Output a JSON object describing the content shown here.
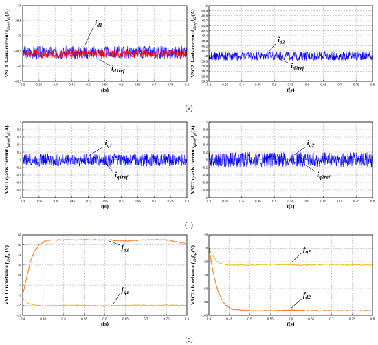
{
  "captions": [
    "(a)",
    "(b)",
    "(c)"
  ],
  "chart_data": [
    {
      "id": "a1",
      "type": "line",
      "ylabel": "VSC1 d-axis current i_d1ref,i_d1(A)",
      "ylabel_parts": {
        "main": "VSC1 d-axis current ",
        "vars": "i",
        "sub1": "d1ref",
        "sep": ",i",
        "sub2": "d1",
        "unit": "(A)"
      },
      "xlabel": "t(s)",
      "xlabel_parts": {
        "var": "t",
        "unit": "(s)"
      },
      "xlim": [
        0.3,
        0.8
      ],
      "ylim": [
        -40.5,
        -38
      ],
      "xticks": [
        0.3,
        0.35,
        0.4,
        0.45,
        0.5,
        0.55,
        0.6,
        0.65,
        0.7,
        0.75,
        0.8
      ],
      "xtick_labels": [
        "0.3",
        "0.35",
        "0.4",
        "0.45",
        "0.5",
        "0.55",
        "0.6",
        "0.65",
        "0.7",
        "0.75",
        "0.8"
      ],
      "yticks": [
        -40.5,
        -40,
        -39.5,
        -39,
        -38.5,
        -38
      ],
      "ytick_labels": [
        "-40.5",
        "-40",
        "-39.5",
        "-39",
        "-38.5",
        "-38"
      ],
      "grid": true,
      "series": [
        {
          "name": "i_d1",
          "kind": "band",
          "color": "#1a1aff",
          "center": -39.55,
          "half_width": 0.22
        },
        {
          "name": "i_d1ref",
          "kind": "band",
          "color": "#ff0000",
          "center": -39.6,
          "half_width": 0.13
        }
      ],
      "annotations": [
        {
          "main": "i",
          "sub": "d1",
          "x": 0.52,
          "y": -38.65,
          "ax": 0.49,
          "ay": -39.3
        },
        {
          "main": "i",
          "sub": "d1ref",
          "x": 0.57,
          "y": -40.15,
          "ax": 0.53,
          "ay": -39.75
        }
      ]
    },
    {
      "id": "a2",
      "type": "line",
      "ylabel": "VSC2 d-axis current i_d2ref,i_d2(A)",
      "ylabel_parts": {
        "main": "VSC2 d-axis current ",
        "vars": "i",
        "sub1": "d2ref",
        "sep": ",i",
        "sub2": "d2",
        "unit": "(A)"
      },
      "xlabel": "t(s)",
      "xlabel_parts": {
        "var": "t",
        "unit": "(s)"
      },
      "xlim": [
        0.3,
        0.8
      ],
      "ylim": [
        39.5,
        41
      ],
      "xticks": [
        0.3,
        0.35,
        0.4,
        0.45,
        0.5,
        0.55,
        0.6,
        0.65,
        0.7,
        0.75,
        0.8
      ],
      "xtick_labels": [
        "0.3",
        "0.35",
        "0.4",
        "0.45",
        "0.5",
        "0.55",
        "0.6",
        "0.65",
        "0.7",
        "0.75",
        "0.8"
      ],
      "yticks": [
        39.5,
        39.6,
        39.7,
        39.8,
        39.9,
        40,
        40.1,
        40.2,
        40.3,
        40.4,
        40.5,
        40.6,
        40.7,
        40.8,
        40.9,
        41
      ],
      "ytick_labels": [
        "39.5",
        "39.6",
        "39.7",
        "39.8",
        "39.9",
        "40",
        "40.1",
        "40.2",
        "40.3",
        "40.4",
        "40.5",
        "40.6",
        "40.7",
        "40.8",
        "40.9",
        "41"
      ],
      "grid": true,
      "series": [
        {
          "name": "i_d2",
          "kind": "band",
          "color": "#0000ee",
          "center": 40.0,
          "half_width": 0.09
        },
        {
          "name": "i_d2ref",
          "kind": "line",
          "color": "#ff0000",
          "y": 40.0
        }
      ],
      "annotations": [
        {
          "main": "i",
          "sub": "d2",
          "x": 0.51,
          "y": 40.28,
          "ax": 0.48,
          "ay": 40.07
        },
        {
          "main": "i",
          "sub": "d2ref",
          "x": 0.55,
          "y": 39.76,
          "ax": 0.51,
          "ay": 39.95
        }
      ]
    },
    {
      "id": "b1",
      "type": "line",
      "ylabel": "VSC1 q-axis current i_q1ref,i_q1(A)",
      "ylabel_parts": {
        "main": "VSC1 q-axis current ",
        "vars": "i",
        "sub1": "q1ref",
        "sep": ",i",
        "sub2": "q1",
        "unit": "(A)"
      },
      "xlabel": "t(s)",
      "xlabel_parts": {
        "var": "t",
        "unit": "(s)"
      },
      "xlim": [
        0.3,
        0.8
      ],
      "ylim": [
        -1,
        1
      ],
      "xticks": [
        0.3,
        0.35,
        0.4,
        0.45,
        0.5,
        0.55,
        0.6,
        0.65,
        0.7,
        0.75,
        0.8
      ],
      "xtick_labels": [
        "0.3",
        "0.35",
        "0.4",
        "0.45",
        "0.5",
        "0.55",
        "0.6",
        "0.65",
        "0.7",
        "0.75",
        "0.8"
      ],
      "yticks": [
        -1,
        -0.8,
        -0.6,
        -0.4,
        -0.2,
        0,
        0.2,
        0.4,
        0.6,
        0.8,
        1
      ],
      "ytick_labels": [
        "-1",
        "-0.8",
        "-0.6",
        "-0.4",
        "-0.2",
        "0",
        "0.2",
        "0.4",
        "0.6",
        "0.8",
        "1"
      ],
      "grid": true,
      "series": [
        {
          "name": "i_q1",
          "kind": "band",
          "color": "#0000ff",
          "center": 0.0,
          "half_width": 0.17
        },
        {
          "name": "i_q1ref",
          "kind": "line",
          "color": "#ff0000",
          "y": 0.0
        }
      ],
      "annotations": [
        {
          "main": "i",
          "sub": "q1",
          "x": 0.55,
          "y": 0.38,
          "ax": 0.5,
          "ay": 0.1
        },
        {
          "main": "i",
          "sub": "q1ref",
          "x": 0.58,
          "y": -0.45,
          "ax": 0.55,
          "ay": -0.08
        }
      ]
    },
    {
      "id": "b2",
      "type": "line",
      "ylabel": "VSC2 q-axis current i_q2ref,i_q2(A)",
      "ylabel_parts": {
        "main": "VSC2 q-axis current ",
        "vars": "i",
        "sub1": "q2ref",
        "sep": ",i",
        "sub2": "q2",
        "unit": "(A)"
      },
      "xlabel": "t(s)",
      "xlabel_parts": {
        "var": "t",
        "unit": "(s)"
      },
      "xlim": [
        0.3,
        0.8
      ],
      "ylim": [
        -1,
        1
      ],
      "xticks": [
        0.3,
        0.35,
        0.4,
        0.45,
        0.5,
        0.55,
        0.6,
        0.65,
        0.7,
        0.75,
        0.8
      ],
      "xtick_labels": [
        "0.3",
        "0.35",
        "0.4",
        "0.45",
        "0.5",
        "0.55",
        "0.6",
        "0.65",
        "0.7",
        "0.75",
        "0.8"
      ],
      "yticks": [
        -1,
        -0.8,
        -0.6,
        -0.4,
        -0.2,
        0,
        0.2,
        0.4,
        0.6,
        0.8,
        1
      ],
      "ytick_labels": [
        "-1",
        "-0.8",
        "-0.6",
        "-0.4",
        "-0.2",
        "0",
        "0.2",
        "0.4",
        "0.6",
        "0.8",
        "1"
      ],
      "grid": true,
      "series": [
        {
          "name": "i_q2",
          "kind": "band",
          "color": "#0000ee",
          "center": 0.0,
          "half_width": 0.2
        },
        {
          "name": "i_q2ref",
          "kind": "line",
          "color": "#ff0000",
          "y": 0.0
        }
      ],
      "annotations": [
        {
          "main": "i",
          "sub": "q2",
          "x": 0.6,
          "y": 0.38,
          "ax": 0.56,
          "ay": 0.12
        },
        {
          "main": "i",
          "sub": "q2ref",
          "x": 0.63,
          "y": -0.45,
          "ax": 0.59,
          "ay": -0.1
        }
      ]
    },
    {
      "id": "c1",
      "type": "line",
      "ylabel": "VSC1 disturbance f_d1,f_q1(V)",
      "ylabel_parts": {
        "main": "VSC1 disturbance ",
        "vars": "f",
        "sub1": "d1",
        "sep": ",f",
        "sub2": "q1",
        "unit": "(V)"
      },
      "xlabel": "t(s)",
      "xlabel_parts": {
        "var": "t",
        "unit": "(s)"
      },
      "xlim": [
        0.4,
        0.8
      ],
      "ylim": [
        -20,
        60
      ],
      "xticks": [
        0.4,
        0.45,
        0.5,
        0.55,
        0.6,
        0.65,
        0.7,
        0.75,
        0.8
      ],
      "xtick_labels": [
        "0.4",
        "0.45",
        "0.5",
        "0.55",
        "0.6",
        "0.65",
        "0.7",
        "0.75",
        "0.8"
      ],
      "yticks": [
        -20,
        -10,
        0,
        10,
        20,
        30,
        40,
        50,
        60
      ],
      "ytick_labels": [
        "-20",
        "-10",
        "0",
        "10",
        "20",
        "30",
        "40",
        "50",
        "60"
      ],
      "grid": true,
      "series": [
        {
          "name": "f_d1",
          "kind": "line",
          "color": "#ff6600",
          "x": [
            0.4,
            0.41,
            0.42,
            0.43,
            0.44,
            0.45,
            0.46,
            0.47,
            0.48,
            0.5,
            0.55,
            0.6,
            0.65,
            0.7,
            0.75,
            0.8
          ],
          "y": [
            0,
            18,
            35,
            45,
            50,
            53,
            54,
            55,
            55,
            55,
            55,
            55,
            54,
            55,
            55,
            51
          ]
        },
        {
          "name": "f_q1",
          "kind": "line",
          "color": "#e8b800",
          "x": [
            0.4,
            0.405,
            0.41,
            0.42,
            0.43,
            0.44,
            0.45,
            0.5,
            0.55,
            0.6,
            0.65,
            0.7,
            0.75,
            0.8
          ],
          "y": [
            -3,
            -5,
            -7,
            -9,
            -10,
            -10,
            -11,
            -10,
            -10,
            -11,
            -10,
            -10,
            -10,
            -10
          ]
        }
      ],
      "annotations": [
        {
          "main": "f",
          "sub": "d1",
          "x": 0.64,
          "y": 45,
          "ax": 0.61,
          "ay": 54
        },
        {
          "main": "f",
          "sub": "q1",
          "x": 0.64,
          "y": 3,
          "ax": 0.62,
          "ay": -9
        }
      ]
    },
    {
      "id": "c2",
      "type": "line",
      "ylabel": "VSC2 disturbance f_d2,f_q2(V)",
      "ylabel_parts": {
        "main": "VSC2 disturbance ",
        "vars": "f",
        "sub1": "d2",
        "sep": ",f",
        "sub2": "q2",
        "unit": "(V)"
      },
      "xlabel": "t(s)",
      "xlabel_parts": {
        "var": "t",
        "unit": "(s)"
      },
      "xlim": [
        0.4,
        0.8
      ],
      "ylim": [
        -100,
        20
      ],
      "xticks": [
        0.4,
        0.45,
        0.5,
        0.55,
        0.6,
        0.65,
        0.7,
        0.75,
        0.8
      ],
      "xtick_labels": [
        "0.4",
        "0.45",
        "0.5",
        "0.55",
        "0.6",
        "0.65",
        "0.7",
        "0.75",
        "0.8"
      ],
      "yticks": [
        -100,
        -80,
        -60,
        -40,
        -20,
        0,
        20
      ],
      "ytick_labels": [
        "-100",
        "-80",
        "-60",
        "-40",
        "-20",
        "0",
        "20"
      ],
      "grid": true,
      "series": [
        {
          "name": "f_q2",
          "kind": "line",
          "color": "#e8b800",
          "x": [
            0.4,
            0.41,
            0.42,
            0.43,
            0.44,
            0.45,
            0.5,
            0.55,
            0.6,
            0.65,
            0.7,
            0.75,
            0.8
          ],
          "y": [
            0,
            -12,
            -20,
            -23,
            -24,
            -25,
            -25,
            -24,
            -25,
            -25,
            -24,
            -25,
            -25
          ]
        },
        {
          "name": "f_d2",
          "kind": "line",
          "color": "#ff6600",
          "x": [
            0.4,
            0.41,
            0.42,
            0.43,
            0.44,
            0.45,
            0.46,
            0.48,
            0.5,
            0.55,
            0.6,
            0.65,
            0.7,
            0.75,
            0.8
          ],
          "y": [
            0,
            -35,
            -60,
            -75,
            -84,
            -89,
            -91,
            -92,
            -93,
            -93,
            -92,
            -93,
            -93,
            -93,
            -93
          ]
        }
      ],
      "annotations": [
        {
          "main": "f",
          "sub": "q2",
          "x": 0.63,
          "y": -5,
          "ax": 0.6,
          "ay": -22
        },
        {
          "main": "f",
          "sub": "d2",
          "x": 0.63,
          "y": -73,
          "ax": 0.6,
          "ay": -90
        }
      ]
    }
  ]
}
